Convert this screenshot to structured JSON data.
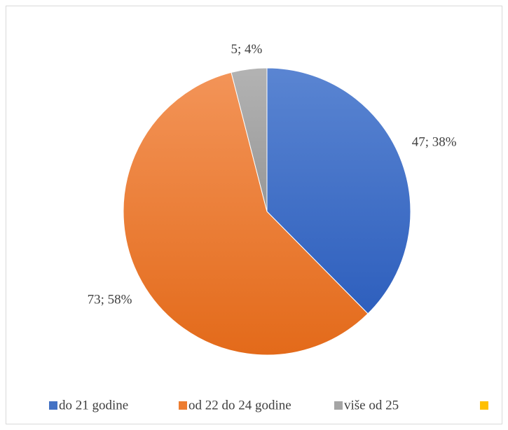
{
  "chart_data": {
    "type": "pie",
    "categories": [
      "do 21 godine",
      "od 22 do 24 godine",
      "više od 25",
      null
    ],
    "values": [
      47,
      73,
      5,
      0
    ],
    "value_labels": [
      "47; 38%",
      "73; 58%",
      "5; 4%",
      null
    ],
    "colors": [
      "#4472c4",
      "#ed7d31",
      "#a5a5a5",
      "#ffc000"
    ],
    "legend": "bottom"
  }
}
